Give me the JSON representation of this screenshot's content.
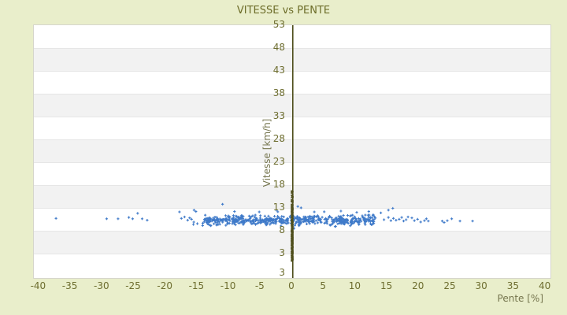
{
  "page": {
    "background": "#e9eecb"
  },
  "chart_data": {
    "type": "scatter",
    "title": "VITESSE vs PENTE",
    "xlabel": "Pente [%]",
    "ylabel": "Vitesse [km/h]",
    "x_ticks": [
      -40,
      -35,
      -30,
      -25,
      -20,
      -15,
      -10,
      -5,
      0,
      5,
      10,
      15,
      20,
      25,
      30,
      35,
      40
    ],
    "y_ticks": [
      53,
      48,
      43,
      38,
      33,
      28,
      23,
      18,
      13,
      8,
      3
    ],
    "y_bottom_edge_label": "3",
    "xlim": [
      -40.7,
      40.8
    ],
    "ylim": [
      -2.3,
      53
    ],
    "grid": "horizontal-stripes",
    "legend_position": "none",
    "colors": {
      "background": "#e9eecb",
      "stripe_white": "#ffffff",
      "stripe_gray": "#f2f2f2",
      "stripe_line": "#e6e6e6",
      "plot_border": "#d6d6cc",
      "title_text": "#6c6c28",
      "tick_text": "#6d6d2f",
      "axis_name_text": "#75754e",
      "point_blue": "#3f7ac9",
      "zero_olive": "#4e4e1b"
    },
    "series": [
      {
        "name": "vitesse-points",
        "marker": "plus",
        "color": "#3f7ac9",
        "points": [
          [
            -37.3,
            10.8
          ],
          [
            -29.3,
            10.7
          ],
          [
            -27.5,
            10.7
          ],
          [
            -25.8,
            11.0
          ],
          [
            -25.2,
            10.7
          ],
          [
            -24.4,
            11.9
          ],
          [
            -23.7,
            10.7
          ],
          [
            -22.9,
            10.4
          ],
          [
            -17.8,
            12.2
          ],
          [
            -17.5,
            10.8
          ],
          [
            -17.0,
            11.1
          ],
          [
            -16.5,
            10.4
          ],
          [
            -16.2,
            10.9
          ],
          [
            -15.9,
            10.6
          ],
          [
            -15.5,
            12.6
          ],
          [
            -15.2,
            12.3
          ],
          [
            -11.0,
            13.9
          ],
          [
            -9.1,
            12.3
          ],
          [
            -5.2,
            12.2
          ],
          [
            -2.5,
            12.6
          ],
          [
            0.9,
            13.4
          ],
          [
            1.4,
            13.1
          ],
          [
            3.5,
            12.2
          ],
          [
            7.7,
            12.4
          ],
          [
            10.2,
            12.1
          ],
          [
            12.1,
            12.3
          ],
          [
            14.0,
            12.0
          ],
          [
            15.2,
            12.6
          ],
          [
            15.9,
            13.0
          ],
          [
            14.5,
            10.5
          ],
          [
            15.2,
            11.0
          ],
          [
            15.6,
            10.3
          ],
          [
            16.0,
            10.8
          ],
          [
            16.4,
            10.4
          ],
          [
            16.9,
            10.6
          ],
          [
            17.3,
            11.0
          ],
          [
            17.6,
            10.2
          ],
          [
            18.0,
            10.5
          ],
          [
            18.3,
            11.1
          ],
          [
            18.9,
            10.9
          ],
          [
            19.3,
            10.3
          ],
          [
            19.8,
            10.6
          ],
          [
            20.3,
            10.0
          ],
          [
            20.9,
            10.3
          ],
          [
            21.2,
            10.7
          ],
          [
            21.5,
            10.2
          ],
          [
            23.7,
            10.2
          ],
          [
            24.0,
            9.9
          ],
          [
            24.5,
            10.3
          ],
          [
            25.2,
            10.7
          ],
          [
            26.5,
            10.2
          ],
          [
            28.5,
            10.2
          ]
        ],
        "dense_band": {
          "x_min": -15.6,
          "x_max": 13.4,
          "count": 520,
          "y_center": 10.35,
          "y_sigma": 0.5
        },
        "fringe_band": {
          "x_min": -15.0,
          "x_max": 13.0,
          "count": 28,
          "y_center": 10.5,
          "y_sigma": 1.1
        }
      },
      {
        "name": "pente-zero-cluster",
        "marker": "dash",
        "color": "#4e4e1b",
        "x": 0,
        "segments": [
          {
            "y_min": 1.3,
            "y_max": 2.8,
            "count": 18
          },
          {
            "y_min": 2.8,
            "y_max": 13.6,
            "count": 230
          },
          {
            "y_min": 13.6,
            "y_max": 17.0,
            "count": 30
          }
        ]
      }
    ]
  }
}
